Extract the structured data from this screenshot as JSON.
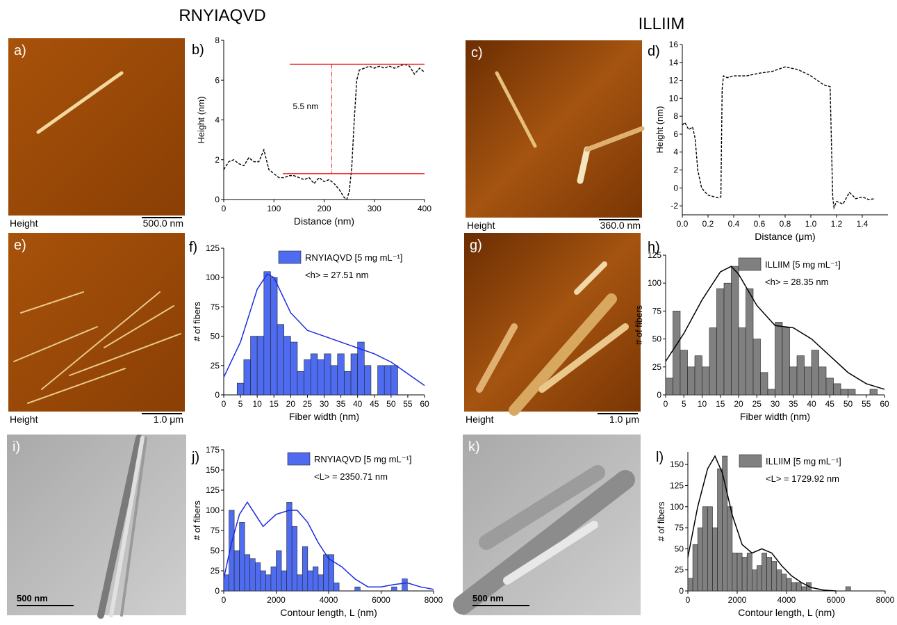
{
  "titles": [
    "RNYIAQVD",
    "ILLIIM"
  ],
  "images": [
    {
      "label": "a)",
      "caption": "Height",
      "scale": "500.0 nm"
    },
    {
      "label": "c)",
      "caption": "Height",
      "scale": "360.0 nm"
    },
    {
      "label": "e)",
      "caption": "Height",
      "scale": "1.0 μm"
    },
    {
      "label": "g)",
      "caption": "Height",
      "scale": "1.0 μm"
    },
    {
      "label": "i)",
      "scale": "500 nm"
    },
    {
      "label": "k)",
      "scale": "500 nm"
    }
  ],
  "chart_data": [
    {
      "type": "line",
      "panel": "b)",
      "x_label": "Distance (nm)",
      "y_label": "Height (nm)",
      "color": "#000000",
      "x": [
        0,
        10,
        20,
        30,
        40,
        50,
        60,
        70,
        80,
        90,
        100,
        110,
        120,
        130,
        140,
        150,
        160,
        170,
        180,
        190,
        200,
        210,
        220,
        230,
        240,
        245,
        250,
        255,
        260,
        265,
        270,
        280,
        290,
        300,
        310,
        320,
        330,
        340,
        350,
        360,
        370,
        380,
        390,
        400
      ],
      "values": [
        1.5,
        1.9,
        2.0,
        1.8,
        1.7,
        2.1,
        1.9,
        1.9,
        2.5,
        1.5,
        1.3,
        1.1,
        1.1,
        1.2,
        1.2,
        1.1,
        1.0,
        1.1,
        0.8,
        1.1,
        0.9,
        1.0,
        0.8,
        0.5,
        0.1,
        0.0,
        0.4,
        1.6,
        4.0,
        6.0,
        6.5,
        6.6,
        6.7,
        6.6,
        6.7,
        6.6,
        6.7,
        6.6,
        6.7,
        6.8,
        6.7,
        6.3,
        6.6,
        6.4
      ],
      "ref_lines": [
        6.8,
        1.3
      ],
      "ref_color": "#e8211d",
      "annotation": "5.5 nm",
      "xlim": [
        0,
        400
      ],
      "xticks": [
        0,
        100,
        200,
        300,
        400
      ],
      "ylim": [
        0,
        8
      ],
      "yticks": [
        0,
        2,
        4,
        6,
        8
      ]
    },
    {
      "type": "line",
      "panel": "d)",
      "x_label": "Distance (μm)",
      "y_label": "Height (nm)",
      "color": "#000000",
      "x": [
        0,
        0.02,
        0.05,
        0.08,
        0.1,
        0.12,
        0.15,
        0.18,
        0.2,
        0.25,
        0.28,
        0.3,
        0.31,
        0.32,
        0.35,
        0.4,
        0.5,
        0.6,
        0.7,
        0.8,
        0.9,
        1.0,
        1.05,
        1.1,
        1.15,
        1.17,
        1.18,
        1.2,
        1.25,
        1.3,
        1.35,
        1.4,
        1.45,
        1.5
      ],
      "values": [
        7,
        7.3,
        6.5,
        6.8,
        5.5,
        2,
        0,
        -0.5,
        -0.8,
        -1,
        -1.1,
        -1,
        11,
        12.5,
        12.3,
        12.5,
        12.5,
        12.8,
        13.0,
        13.5,
        13.2,
        12.5,
        12.0,
        11.5,
        11.3,
        -1,
        -2.2,
        -1.5,
        -1.8,
        -0.5,
        -1.2,
        -1.0,
        -1.3,
        -1.2
      ],
      "xlim": [
        0,
        1.6
      ],
      "xticks": [
        {
          "value": 0,
          "label": "0.0"
        },
        0.2,
        0.4,
        0.6,
        0.8,
        {
          "value": 1,
          "label": "1.0"
        },
        1.2,
        1.4
      ],
      "ylim": [
        -3,
        16
      ],
      "yticks": [
        -2,
        0,
        2,
        4,
        6,
        8,
        10,
        12,
        14,
        16
      ]
    },
    {
      "type": "histogram",
      "panel": "f)",
      "x_label": "Fiber width (nm)",
      "y_label": "# of fibers",
      "series_name": "RNYIAQVD [5 mg mL⁻¹]",
      "annotation": "<h> = 27.51 nm",
      "color": "#4f6cf0",
      "fit_color": "#1a2be0",
      "bins": [
        4,
        6,
        8,
        10,
        12,
        14,
        16,
        18,
        20,
        22,
        24,
        26,
        28,
        30,
        32,
        34,
        36,
        38,
        40,
        42,
        44,
        46,
        48,
        50,
        52
      ],
      "counts": [
        10,
        30,
        50,
        50,
        105,
        100,
        60,
        50,
        45,
        20,
        30,
        35,
        30,
        35,
        25,
        35,
        20,
        35,
        45,
        25,
        0,
        25,
        25,
        25
      ],
      "fit": {
        "x": [
          0,
          5,
          10,
          13,
          15,
          20,
          25,
          30,
          35,
          40,
          45,
          50,
          55,
          60
        ],
        "values": [
          15,
          45,
          90,
          103,
          100,
          70,
          55,
          50,
          45,
          40,
          35,
          28,
          18,
          8
        ]
      },
      "xlim": [
        0,
        60
      ],
      "xticks": [
        0,
        5,
        10,
        15,
        20,
        25,
        30,
        35,
        40,
        45,
        50,
        55,
        60
      ],
      "ylim": [
        0,
        125
      ],
      "yticks": [
        0,
        25,
        50,
        75,
        100,
        125
      ]
    },
    {
      "type": "histogram",
      "panel": "h)",
      "x_label": "Fiber width (nm)",
      "y_label": "# of fibers",
      "series_name": "ILLIIM [5 mg mL⁻¹]",
      "annotation": "<h> = 28.35 nm",
      "color": "#808080",
      "fit_color": "#000000",
      "bins": [
        0,
        2,
        4,
        6,
        8,
        10,
        12,
        14,
        16,
        18,
        20,
        22,
        24,
        26,
        28,
        30,
        32,
        34,
        36,
        38,
        40,
        42,
        44,
        46,
        48,
        50,
        52,
        54,
        56,
        58
      ],
      "counts": [
        15,
        75,
        40,
        25,
        35,
        25,
        60,
        95,
        100,
        115,
        60,
        95,
        50,
        20,
        5,
        65,
        60,
        25,
        35,
        25,
        40,
        25,
        15,
        10,
        5,
        5,
        0,
        0,
        5
      ],
      "fit": {
        "x": [
          0,
          5,
          10,
          15,
          18,
          20,
          25,
          30,
          35,
          40,
          45,
          50,
          55,
          60
        ],
        "values": [
          30,
          55,
          85,
          110,
          115,
          108,
          80,
          62,
          60,
          50,
          35,
          20,
          10,
          5
        ]
      },
      "xlim": [
        0,
        60
      ],
      "xticks": [
        0,
        5,
        10,
        15,
        20,
        25,
        30,
        35,
        40,
        45,
        50,
        55,
        60
      ],
      "ylim": [
        0,
        125
      ],
      "yticks": [
        0,
        25,
        50,
        75,
        100,
        125
      ]
    },
    {
      "type": "histogram",
      "panel": "j)",
      "x_label": "Contour length, L (nm)",
      "y_label": "# of fibers",
      "series_name": "RNYIAQVD [5 mg mL⁻¹]",
      "annotation": "<L> = 2350.71 nm",
      "color": "#4f6cf0",
      "fit_color": "#1a2be0",
      "bins": [
        0,
        200,
        400,
        600,
        800,
        1000,
        1200,
        1400,
        1600,
        1800,
        2000,
        2200,
        2400,
        2600,
        2800,
        3000,
        3200,
        3400,
        3600,
        3800,
        4000,
        4200,
        4400,
        4600,
        4800,
        5000,
        5200,
        5400,
        5600,
        5800,
        6000,
        6200,
        6400,
        6600,
        6800,
        7000,
        7200
      ],
      "counts": [
        20,
        100,
        50,
        85,
        45,
        40,
        35,
        25,
        20,
        30,
        50,
        25,
        110,
        80,
        20,
        55,
        25,
        30,
        20,
        45,
        45,
        10,
        0,
        0,
        0,
        5,
        0,
        0,
        0,
        0,
        0,
        0,
        5,
        0,
        15,
        0
      ],
      "fit": {
        "x": [
          0,
          300,
          600,
          900,
          1200,
          1500,
          2000,
          2500,
          2800,
          3200,
          3600,
          4000,
          4500,
          5000,
          5500,
          6000,
          6500,
          7000,
          7500,
          8000
        ],
        "values": [
          15,
          60,
          95,
          110,
          95,
          80,
          95,
          100,
          100,
          85,
          60,
          40,
          30,
          15,
          5,
          5,
          8,
          10,
          5,
          2
        ]
      },
      "xlim": [
        0,
        8000
      ],
      "xticks": [
        0,
        2000,
        4000,
        6000,
        8000
      ],
      "ylim": [
        0,
        175
      ],
      "yticks": [
        0,
        25,
        50,
        75,
        100,
        125,
        150,
        175
      ]
    },
    {
      "type": "histogram",
      "panel": "l)",
      "x_label": "Contour length, L (nm)",
      "y_label": "# of fibers",
      "series_name": "ILLIIM [5 mg mL⁻¹]",
      "annotation": "<L> = 1729.92 nm",
      "color": "#808080",
      "fit_color": "#000000",
      "bins": [
        0,
        200,
        400,
        600,
        800,
        1000,
        1200,
        1400,
        1600,
        1800,
        2000,
        2200,
        2400,
        2600,
        2800,
        3000,
        3200,
        3400,
        3600,
        3800,
        4000,
        4200,
        4400,
        4600,
        4800,
        5000,
        5200,
        5400,
        5600,
        5800,
        6000,
        6200,
        6400,
        6600,
        6800
      ],
      "counts": [
        15,
        55,
        75,
        100,
        100,
        75,
        145,
        160,
        100,
        45,
        45,
        40,
        45,
        25,
        30,
        45,
        40,
        35,
        25,
        20,
        15,
        10,
        10,
        5,
        10,
        0,
        0,
        0,
        0,
        0,
        0,
        0,
        5,
        0
      ],
      "fit": {
        "x": [
          0,
          400,
          800,
          1100,
          1400,
          1800,
          2200,
          2600,
          3000,
          3400,
          3800,
          4200,
          4600,
          5000,
          5500,
          6000
        ],
        "values": [
          40,
          100,
          145,
          160,
          140,
          90,
          55,
          45,
          50,
          45,
          30,
          18,
          10,
          4,
          1,
          0
        ]
      },
      "xlim": [
        0,
        8000
      ],
      "xticks": [
        0,
        2000,
        4000,
        6000,
        8000
      ],
      "ylim": [
        0,
        165
      ],
      "yticks": [
        0,
        25,
        50,
        75,
        100,
        125,
        150
      ]
    }
  ]
}
